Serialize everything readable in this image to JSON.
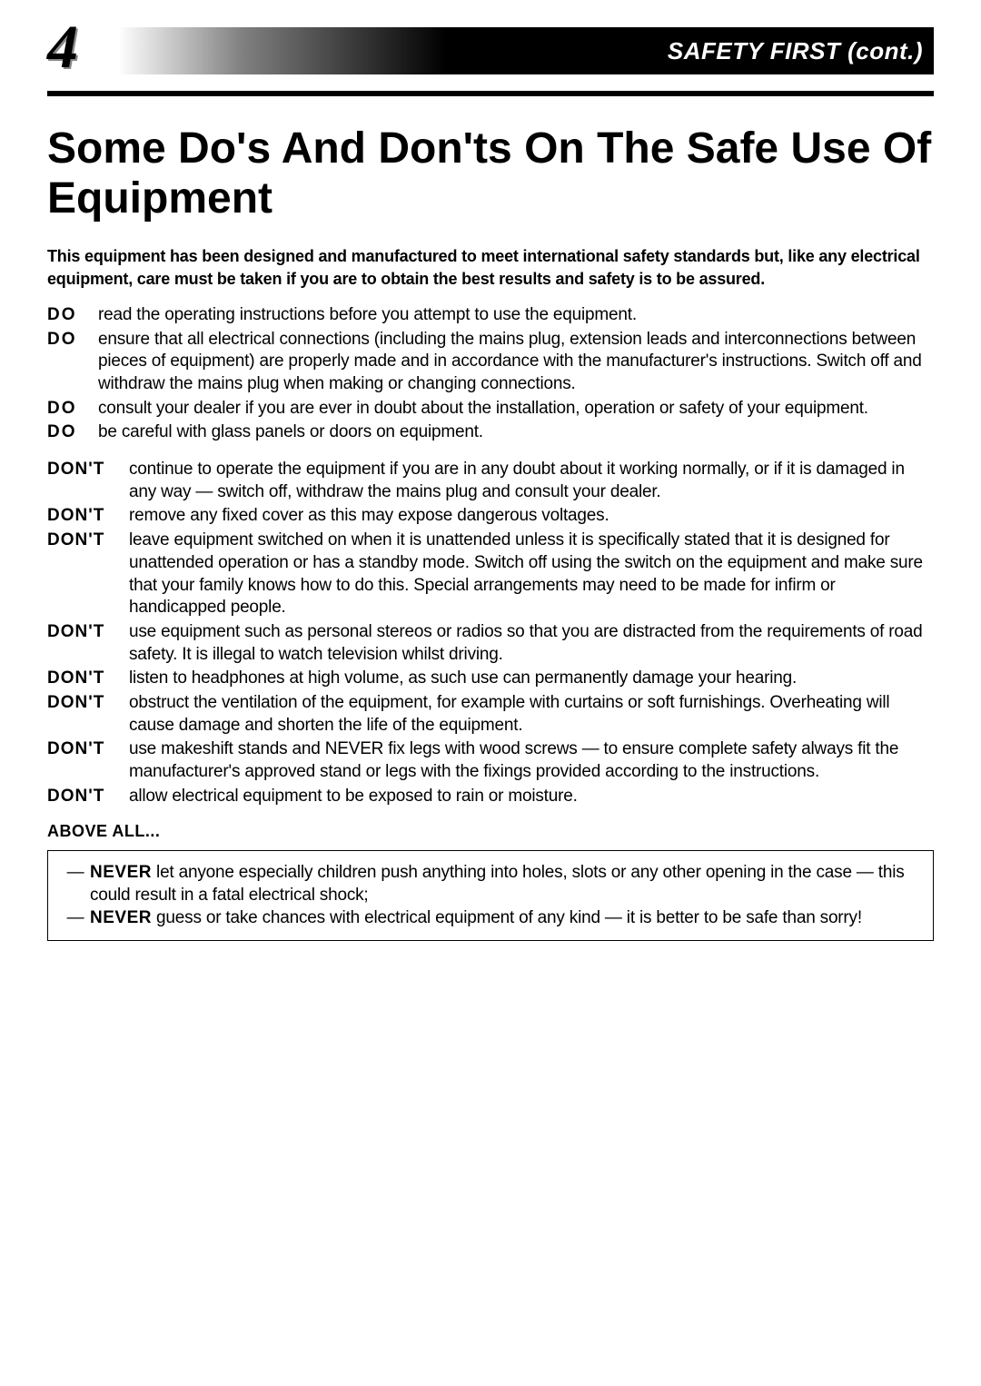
{
  "header": {
    "page_number": "4",
    "section_title": "SAFETY FIRST (cont.)"
  },
  "title": "Some Do's And Don'ts On The Safe Use Of Equipment",
  "intro": "This equipment has been designed and manufactured to meet international safety standards but, like any electrical equipment, care must be taken if you are to obtain the best results and safety is to be assured.",
  "do_items": [
    "read the operating instructions before you attempt to use the equipment.",
    "ensure that all electrical connections (including the mains plug, extension leads and interconnections between pieces of equipment) are properly made and in accordance with the manufacturer's instructions. Switch off and withdraw the mains plug when making or changing connections.",
    "consult your dealer if you are ever in doubt about the installation, operation or safety of your equipment.",
    "be careful with glass panels or doors on equipment."
  ],
  "do_label": "DO",
  "dont_items": [
    "continue to operate the equipment if you are in any doubt about it working normally, or if it is damaged in any way — switch off, withdraw the mains plug and consult your dealer.",
    "remove any fixed cover as this may expose dangerous voltages.",
    "leave equipment switched on when it is unattended unless it is specifically stated that it is designed for unattended operation or has a standby mode. Switch off using the switch on the equipment and make sure that your family knows how to do this. Special arrangements may need to be made for infirm or handicapped people.",
    "use equipment such as personal stereos or radios so that you are distracted from the requirements of road safety. It is illegal to watch television whilst driving.",
    "listen to headphones at high volume, as such use can permanently damage your hearing.",
    "obstruct the ventilation of the equipment, for example with curtains or soft furnishings. Overheating will cause damage and shorten the life of the equipment.",
    "use makeshift stands and NEVER fix legs with wood screws — to ensure complete safety always fit the manufacturer's approved stand or legs with the fixings provided according to the instructions.",
    "allow electrical equipment to be exposed to rain or moisture."
  ],
  "dont_label": "DON'T",
  "above_all_label": "ABOVE ALL...",
  "never_label": "NEVER",
  "never_items": [
    " let anyone especially children push anything into holes, slots or any other opening in the case — this could result in a fatal electrical shock;",
    " guess or take chances with electrical equipment of any kind — it is better to be safe than sorry!"
  ],
  "dash": "—"
}
